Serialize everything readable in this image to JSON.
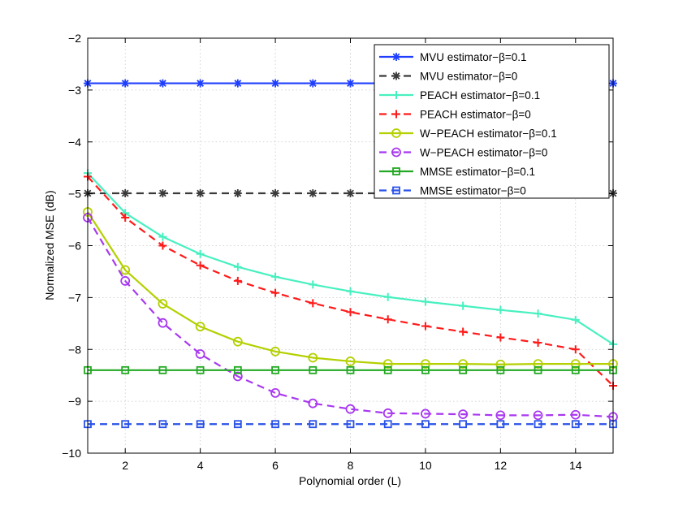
{
  "chart_data": {
    "type": "line",
    "title": "",
    "xlabel": "Polynomial order (L)",
    "ylabel": "Normalized MSE (dB)",
    "xlim": [
      1,
      15
    ],
    "ylim": [
      -10,
      -2
    ],
    "xticks": [
      2,
      4,
      6,
      8,
      10,
      12,
      14
    ],
    "yticks": [
      -10,
      -9,
      -8,
      -7,
      -6,
      -5,
      -4,
      -3,
      -2
    ],
    "grid": true,
    "legend_position": "top-right",
    "x": [
      1,
      2,
      3,
      4,
      5,
      6,
      7,
      8,
      9,
      10,
      11,
      12,
      13,
      14,
      15
    ],
    "series": [
      {
        "name": "MVU estimator−β=0.1",
        "color": "#1f3fff",
        "dash": "solid",
        "marker": "asterisk",
        "values": [
          -2.87,
          -2.87,
          -2.87,
          -2.87,
          -2.87,
          -2.87,
          -2.87,
          -2.87,
          -2.87,
          -2.87,
          -2.87,
          -2.87,
          -2.87,
          -2.87,
          -2.87
        ]
      },
      {
        "name": "MVU estimator−β=0",
        "color": "#3a3a3a",
        "dash": "dashed",
        "marker": "asterisk",
        "values": [
          -4.99,
          -4.99,
          -4.99,
          -4.99,
          -4.99,
          -4.99,
          -4.99,
          -4.99,
          -4.99,
          -4.99,
          -4.99,
          -4.99,
          -4.99,
          -4.99,
          -4.99
        ]
      },
      {
        "name": "PEACH estimator−β=0.1",
        "color": "#48f0c0",
        "dash": "solid",
        "marker": "plus",
        "values": [
          -4.6,
          -5.37,
          -5.83,
          -6.16,
          -6.41,
          -6.6,
          -6.75,
          -6.88,
          -6.99,
          -7.08,
          -7.16,
          -7.24,
          -7.31,
          -7.43,
          -7.9
        ]
      },
      {
        "name": "PEACH estimator−β=0",
        "color": "#ff1a1a",
        "dash": "dashed",
        "marker": "plus",
        "values": [
          -4.67,
          -5.46,
          -6.0,
          -6.38,
          -6.68,
          -6.91,
          -7.11,
          -7.28,
          -7.42,
          -7.55,
          -7.66,
          -7.77,
          -7.87,
          -8.0,
          -8.7
        ]
      },
      {
        "name": "W−PEACH estimator−β=0.1",
        "color": "#b4d000",
        "dash": "solid",
        "marker": "circle",
        "values": [
          -5.35,
          -6.47,
          -7.12,
          -7.56,
          -7.85,
          -8.04,
          -8.16,
          -8.23,
          -8.28,
          -8.28,
          -8.28,
          -8.29,
          -8.28,
          -8.28,
          -8.28
        ]
      },
      {
        "name": "W−PEACH estimator−β=0",
        "color": "#a838f0",
        "dash": "dashed",
        "marker": "circle",
        "values": [
          -5.46,
          -6.68,
          -7.49,
          -8.09,
          -8.52,
          -8.84,
          -9.04,
          -9.15,
          -9.23,
          -9.24,
          -9.25,
          -9.27,
          -9.27,
          -9.26,
          -9.3
        ]
      },
      {
        "name": "MMSE estimator−β=0.1",
        "color": "#22a822",
        "dash": "solid",
        "marker": "square",
        "values": [
          -8.4,
          -8.4,
          -8.4,
          -8.4,
          -8.4,
          -8.4,
          -8.4,
          -8.4,
          -8.4,
          -8.4,
          -8.4,
          -8.4,
          -8.4,
          -8.4,
          -8.4
        ]
      },
      {
        "name": "MMSE estimator−β=0",
        "color": "#2a52e8",
        "dash": "dashed",
        "marker": "square",
        "values": [
          -9.44,
          -9.44,
          -9.44,
          -9.44,
          -9.44,
          -9.44,
          -9.44,
          -9.44,
          -9.44,
          -9.44,
          -9.44,
          -9.44,
          -9.44,
          -9.44,
          -9.44
        ]
      }
    ]
  }
}
